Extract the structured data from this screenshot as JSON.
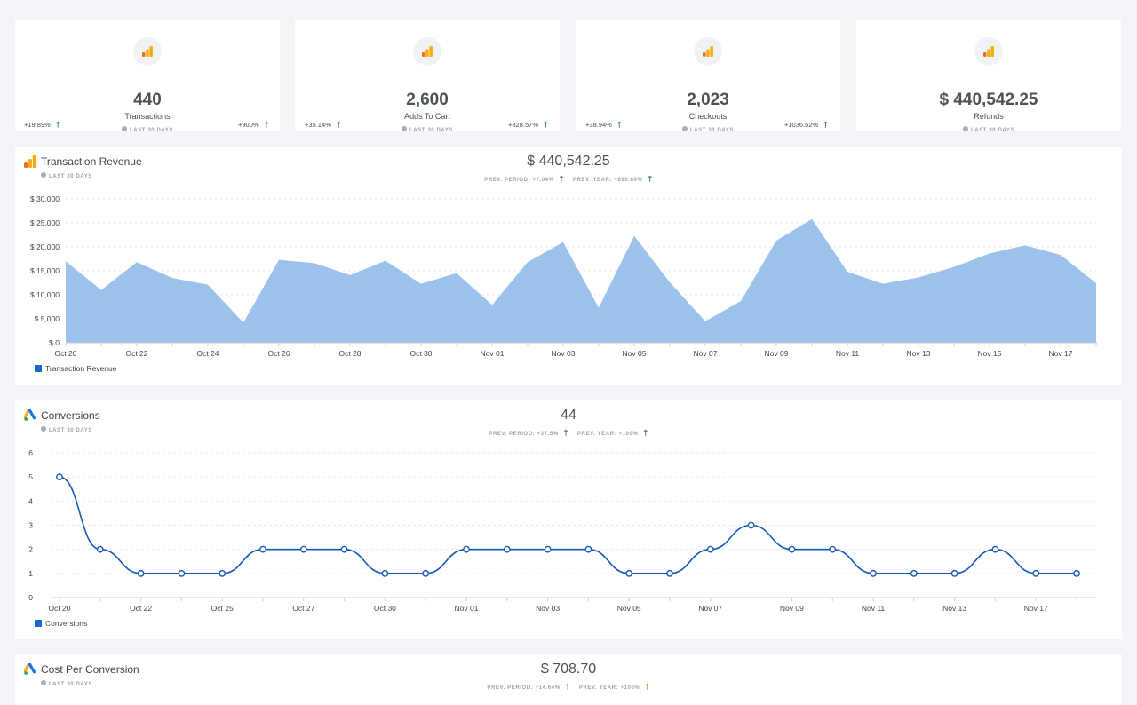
{
  "kpis": [
    {
      "value": "440",
      "label": "Transactions",
      "period": "LAST 30 DAYS",
      "change_left": "+19.89%",
      "change_right": "+900%"
    },
    {
      "value": "2,600",
      "label": "Adds To Cart",
      "period": "LAST 30 DAYS",
      "change_left": "+35.14%",
      "change_right": "+828.57%"
    },
    {
      "value": "2,023",
      "label": "Checkouts",
      "period": "LAST 30 DAYS",
      "change_left": "+38.94%",
      "change_right": "+1036.52%"
    },
    {
      "value": "$ 440,542.25",
      "label": "Refunds",
      "period": "LAST 30 DAYS"
    }
  ],
  "arrow_glyph": "🡑",
  "revenue_panel": {
    "title": "Transaction Revenue",
    "period": "LAST 30 DAYS",
    "total": "$ 440,542.25",
    "prev_period": "PREV. PERIOD: +7.04%",
    "prev_year": "PREV. YEAR: +890.69%",
    "legend": "Transaction Revenue"
  },
  "conversions_panel": {
    "title": "Conversions",
    "period": "LAST 30 DAYS",
    "total": "44",
    "prev_period": "PREV. PERIOD: +37.5%",
    "prev_year": "PREV. YEAR: +100%",
    "legend": "Conversions"
  },
  "cost_panel": {
    "title": "Cost Per Conversion",
    "period": "LAST 30 DAYS",
    "total": "$ 708.70",
    "prev_period": "PREV. PERIOD: +14.64%",
    "prev_year": "PREV. YEAR: +100%"
  },
  "colors": {
    "area_fill": "#9cc2ec",
    "line": "#1559b4",
    "legend": "#1b6ac9",
    "ga_orange": "#f6a821",
    "up_green": "#2e8b3a",
    "up_orange": "#e07b1a"
  },
  "chart_data": [
    {
      "type": "area",
      "title": "Transaction Revenue",
      "series": [
        {
          "name": "Transaction Revenue",
          "values": [
            17000,
            11000,
            16800,
            13500,
            12100,
            4200,
            17300,
            16600,
            14100,
            17100,
            12300,
            14500,
            7900,
            16800,
            21000,
            7300,
            22300,
            12600,
            4500,
            8700,
            21300,
            25800,
            14800,
            12300,
            13600,
            15800,
            18600,
            20300,
            18300,
            12400
          ]
        }
      ],
      "x_tick_labels": [
        "Oct 20",
        "Oct 22",
        "Oct 24",
        "Oct 26",
        "Oct 28",
        "Oct 30",
        "Nov 01",
        "Nov 03",
        "Nov 05",
        "Nov 07",
        "Nov 09",
        "Nov 11",
        "Nov 13",
        "Nov 15",
        "Nov 17"
      ],
      "y_tick_labels": [
        "$ 0",
        "$ 5,000",
        "$ 10,000",
        "$ 15,000",
        "$ 20,000",
        "$ 25,000",
        "$ 30,000"
      ],
      "ylim": [
        0,
        30000
      ],
      "legend": "bottom-left"
    },
    {
      "type": "line",
      "title": "Conversions",
      "series": [
        {
          "name": "Conversions",
          "values": [
            5,
            2,
            1,
            1,
            1,
            2,
            2,
            2,
            1,
            1,
            2,
            2,
            2,
            2,
            1,
            1,
            2,
            3,
            2,
            2,
            1,
            1,
            1,
            2,
            1,
            1
          ]
        }
      ],
      "x_tick_labels": [
        "Oct 20",
        "Oct 22",
        "Oct 25",
        "Oct 27",
        "Oct 30",
        "Nov 01",
        "Nov 03",
        "Nov 05",
        "Nov 07",
        "Nov 09",
        "Nov 11",
        "Nov 13",
        "Nov 17"
      ],
      "y_tick_labels": [
        "0",
        "1",
        "2",
        "3",
        "4",
        "5",
        "6"
      ],
      "ylim": [
        0,
        6
      ],
      "legend": "bottom-left"
    }
  ]
}
